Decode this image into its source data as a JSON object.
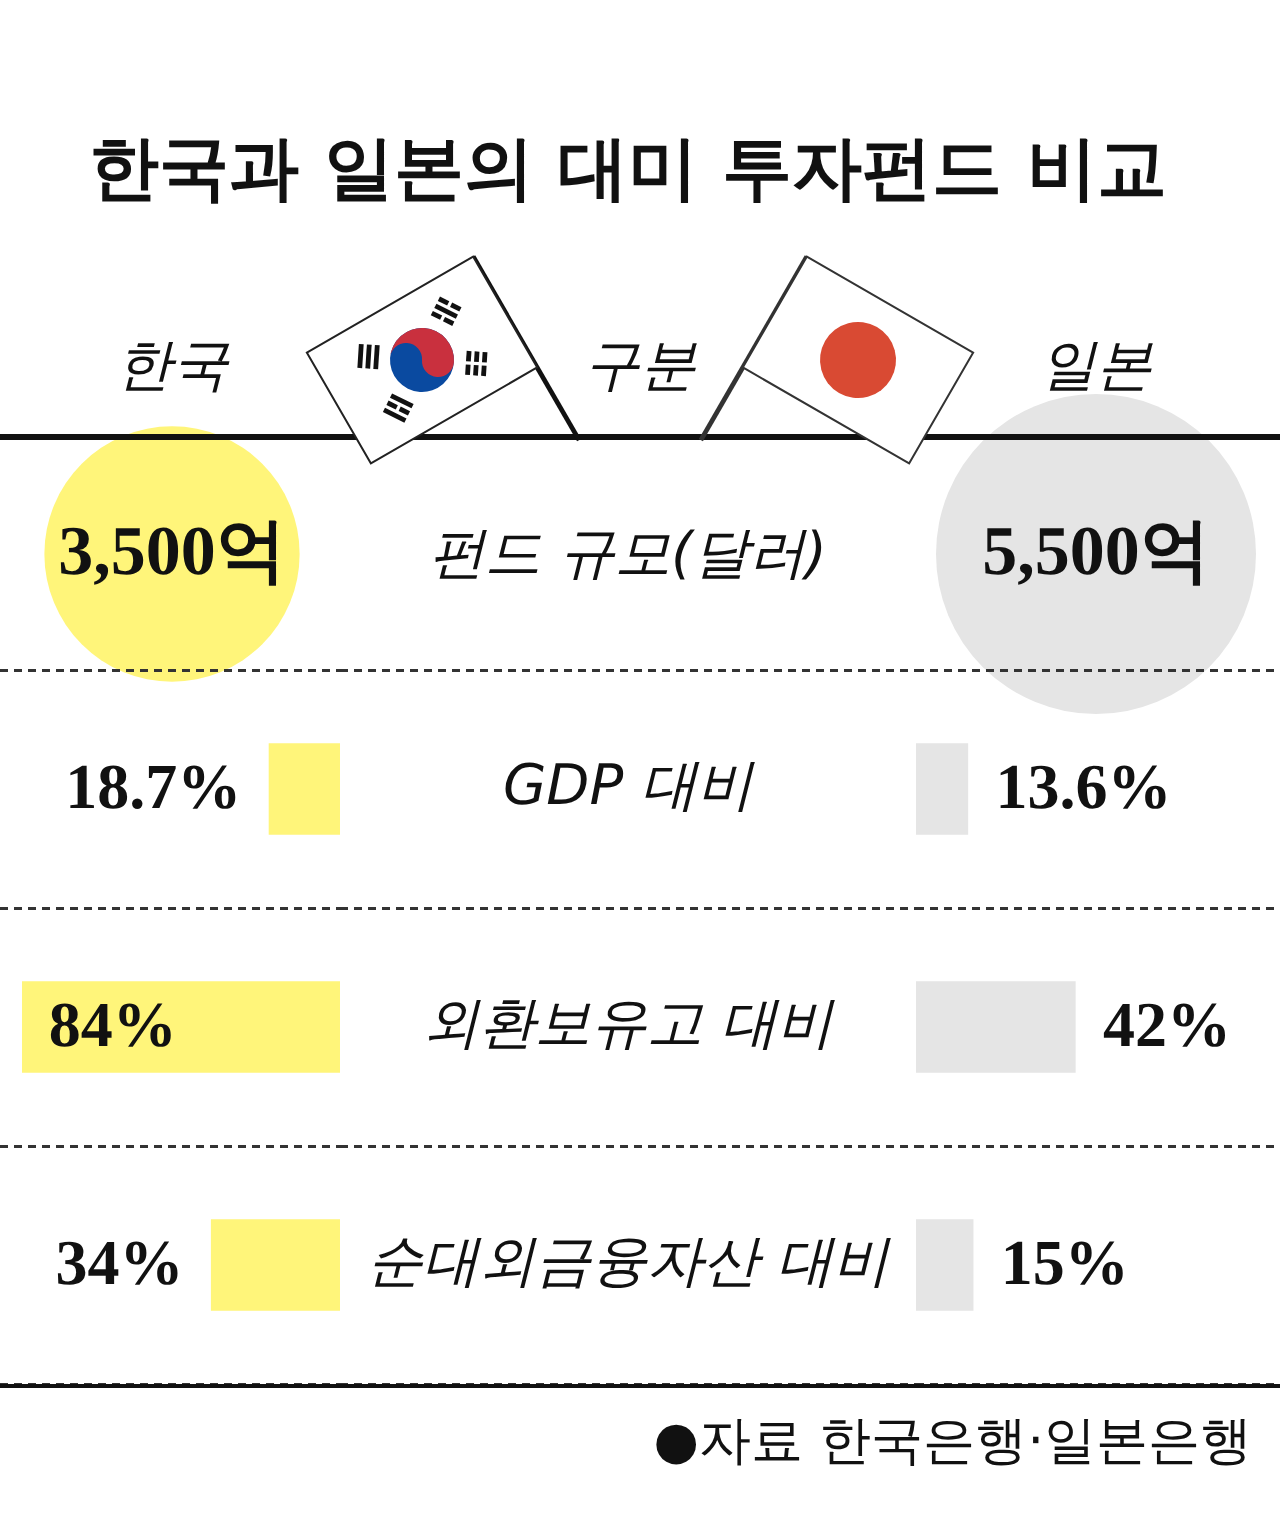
{
  "chart_data": [
    {
      "type": "other",
      "title": "한국과 일본의 대미 투자펀드 비교",
      "xlabel": "구분",
      "ylabel": "펀드 규모(달러)",
      "categories": [
        "한국",
        "일본"
      ],
      "values": [
        3500,
        5500
      ],
      "colors": [
        "#fff57a",
        "#e5e5e5"
      ],
      "value_labels": [
        "3,500억",
        "5,500억"
      ]
    },
    {
      "type": "bar",
      "orientation": "horizontal",
      "categories": [
        "GDP 대비",
        "외환보유고 대비",
        "순대외금융자산 대비"
      ],
      "values": [
        18.7,
        84,
        34
      ],
      "value_labels": [
        "18.7%",
        "84%",
        "34%"
      ],
      "color": "#fff57a",
      "xlim": [
        90,
        0
      ],
      "grid": "y",
      "tick_labels": "y"
    },
    {
      "type": "bar",
      "orientation": "horizontal",
      "categories": [
        null,
        null,
        null
      ],
      "values": [
        13.6,
        42,
        15
      ],
      "value_labels": [
        "13.6%",
        "42%",
        "15%"
      ],
      "color": "#e5e5e5",
      "grid": "y",
      "tick_labels": false,
      "annotations": [
        "●자료 한국은행·일본은행"
      ]
    }
  ]
}
